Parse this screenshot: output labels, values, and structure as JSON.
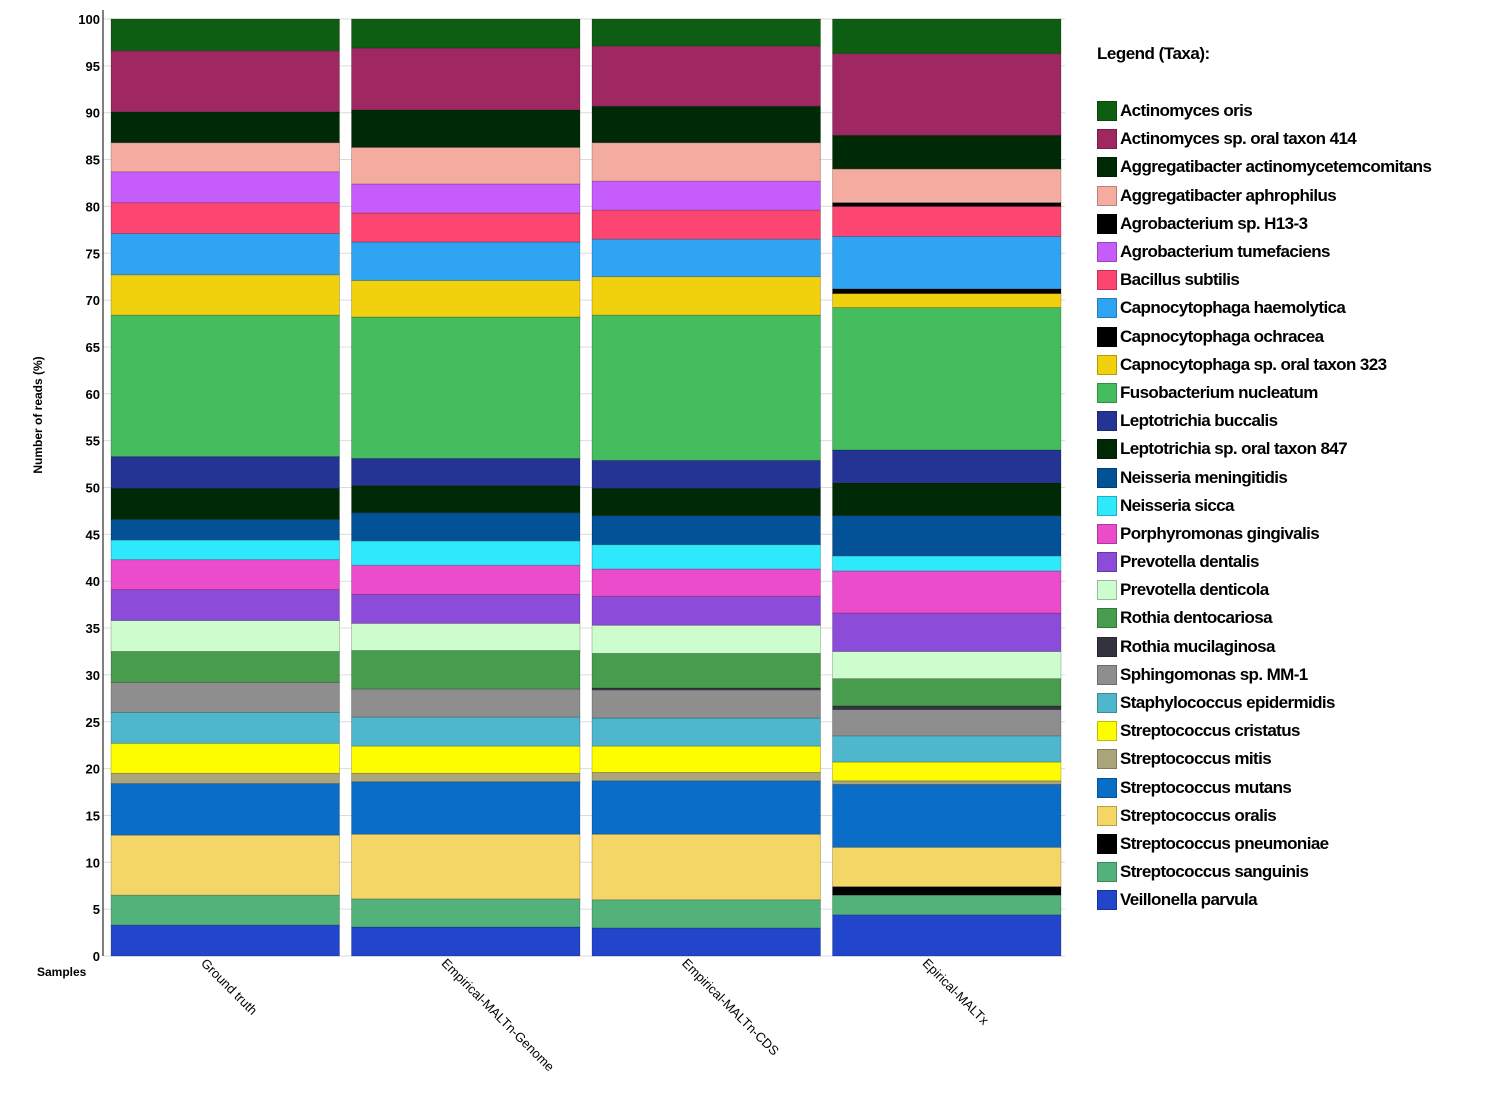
{
  "chart_data": {
    "type": "bar",
    "stacked": true,
    "ylabel": "Number of reads (%)",
    "xlabel": "Samples",
    "ylim": [
      0,
      100
    ],
    "yticks": [
      0,
      5,
      10,
      15,
      20,
      25,
      30,
      35,
      40,
      45,
      50,
      55,
      60,
      65,
      70,
      75,
      80,
      85,
      90,
      95,
      100
    ],
    "grid": true,
    "legend_title": "Legend (Taxa):",
    "legend_position": "right",
    "categories": [
      "Ground truth",
      "Empirical-MALTn-Genome",
      "Empirical-MALTn-CDS",
      "Epirical-MALTx"
    ],
    "series": [
      {
        "name": "Actinomyces oris",
        "color": "#0d5e12",
        "values": [
          3.4,
          3.1,
          2.9,
          3.7
        ]
      },
      {
        "name": "Actinomyces sp. oral taxon 414",
        "color": "#a02862",
        "values": [
          6.5,
          6.6,
          6.4,
          8.7
        ]
      },
      {
        "name": "Aggregatibacter actinomycetemcomitans",
        "color": "#002a06",
        "values": [
          3.3,
          4.0,
          3.9,
          3.6
        ]
      },
      {
        "name": "Aggregatibacter aphrophilus",
        "color": "#f4aba0",
        "values": [
          3.1,
          3.9,
          4.1,
          3.6
        ]
      },
      {
        "name": "Agrobacterium sp. H13-3",
        "color": "#000000",
        "values": [
          0,
          0,
          0,
          0.4
        ]
      },
      {
        "name": "Agrobacterium tumefaciens",
        "color": "#c65cfc",
        "values": [
          3.3,
          3.1,
          3.1,
          0
        ]
      },
      {
        "name": "Bacillus subtilis",
        "color": "#fc4570",
        "values": [
          3.3,
          3.1,
          3.1,
          3.2
        ]
      },
      {
        "name": "Capnocytophaga haemolytica",
        "color": "#2ea4f2",
        "values": [
          4.4,
          4.1,
          4.0,
          5.6
        ]
      },
      {
        "name": "Capnocytophaga ochracea",
        "color": "#000000",
        "values": [
          0,
          0,
          0,
          0.5
        ]
      },
      {
        "name": "Capnocytophaga sp. oral taxon 323",
        "color": "#f1d10d",
        "values": [
          4.3,
          3.9,
          4.1,
          1.5
        ]
      },
      {
        "name": "Fusobacterium nucleatum",
        "color": "#45bc5d",
        "values": [
          15.1,
          15.1,
          15.5,
          15.2
        ]
      },
      {
        "name": "Leptotrichia buccalis",
        "color": "#243494",
        "values": [
          3.4,
          2.9,
          3.0,
          3.5
        ]
      },
      {
        "name": "Leptotrichia sp. oral taxon 847",
        "color": "#002a06",
        "values": [
          3.3,
          2.9,
          2.9,
          3.5
        ]
      },
      {
        "name": "Neisseria meningitidis",
        "color": "#035196",
        "values": [
          2.2,
          3.0,
          3.1,
          4.3
        ]
      },
      {
        "name": "Neisseria sicca",
        "color": "#2ee8fc",
        "values": [
          2.1,
          2.6,
          2.6,
          1.6
        ]
      },
      {
        "name": "Porphyromonas gingivalis",
        "color": "#ea4ccb",
        "values": [
          3.2,
          3.1,
          2.9,
          4.5
        ]
      },
      {
        "name": "Prevotella dentalis",
        "color": "#8c4bd8",
        "values": [
          3.3,
          3.1,
          3.1,
          4.1
        ]
      },
      {
        "name": "Prevotella denticola",
        "color": "#cdfccd",
        "values": [
          3.3,
          2.9,
          3.0,
          2.9
        ]
      },
      {
        "name": "Rothia dentocariosa",
        "color": "#479c4e",
        "values": [
          3.3,
          4.1,
          3.7,
          2.9
        ]
      },
      {
        "name": "Rothia mucilaginosa",
        "color": "#33333f",
        "values": [
          0,
          0,
          0.2,
          0.4
        ]
      },
      {
        "name": "Sphingomonas sp. MM-1",
        "color": "#8e8e8e",
        "values": [
          3.2,
          3.0,
          3.0,
          2.8
        ]
      },
      {
        "name": "Staphylococcus epidermidis",
        "color": "#4fb7cc",
        "values": [
          3.3,
          3.1,
          3.0,
          2.8
        ]
      },
      {
        "name": "Streptococcus cristatus",
        "color": "#fdfd00",
        "values": [
          3.2,
          2.9,
          2.8,
          2.0
        ]
      },
      {
        "name": "Streptococcus mitis",
        "color": "#aaa57b",
        "values": [
          1.1,
          0.9,
          0.9,
          0.4
        ]
      },
      {
        "name": "Streptococcus mutans",
        "color": "#0a6dc8",
        "values": [
          5.5,
          5.6,
          5.7,
          6.7
        ]
      },
      {
        "name": "Streptococcus oralis",
        "color": "#f4d666",
        "values": [
          6.4,
          6.9,
          7.0,
          4.2
        ]
      },
      {
        "name": "Streptococcus pneumoniae",
        "color": "#000000",
        "values": [
          0,
          0,
          0,
          0.9
        ]
      },
      {
        "name": "Streptococcus sanguinis",
        "color": "#52b27a",
        "values": [
          3.2,
          3.0,
          3.0,
          2.1
        ]
      },
      {
        "name": "Veillonella parvula",
        "color": "#2146cc",
        "values": [
          3.3,
          3.1,
          3.0,
          4.4
        ]
      }
    ]
  }
}
